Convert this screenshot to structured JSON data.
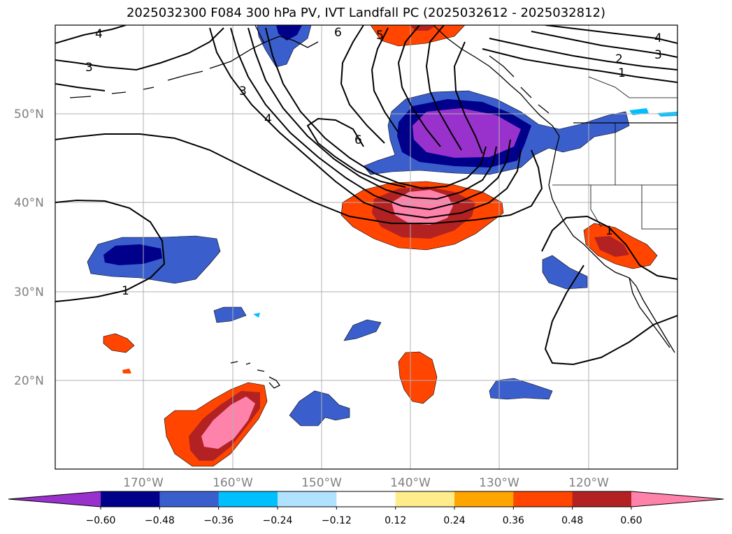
{
  "title": "2025032300 F084 300 hPa PV, IVT Landfall PC (2025032612 - 2025032812)",
  "lat_labels": [
    "50°N",
    "40°N",
    "30°N",
    "20°N"
  ],
  "lon_labels": [
    "170°W",
    "160°W",
    "150°W",
    "140°W",
    "130°W",
    "120°W"
  ],
  "colorbar": {
    "colors": [
      "#9932cc",
      "#00008b",
      "#3a5fcd",
      "#00bfff",
      "#b0e2ff",
      "#ffffff",
      "#ffec8b",
      "#ffa500",
      "#ff4500",
      "#b22222",
      "#ff82ab"
    ],
    "tick_labels": [
      "−0.60",
      "−0.48",
      "−0.36",
      "−0.24",
      "−0.12",
      "0.12",
      "0.24",
      "0.36",
      "0.48",
      "0.60"
    ]
  },
  "contour_labels": [
    "4",
    "3",
    "3",
    "4",
    "6",
    "5",
    "6",
    "4",
    "3",
    "2",
    "1",
    "1",
    "1"
  ]
}
